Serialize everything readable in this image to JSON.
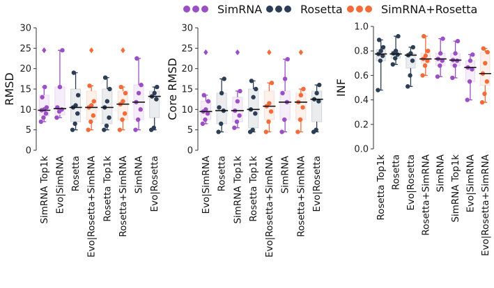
{
  "legend": [
    {
      "name": "SimRNA",
      "color": "#9b4fc4"
    },
    {
      "name": "Rosetta",
      "color": "#2c3e55"
    },
    {
      "name": "SimRNA+Rosetta",
      "color": "#f26b38"
    }
  ],
  "chart_data": [
    {
      "type": "box",
      "ylabel": "RMSD",
      "ylim": [
        0,
        30
      ],
      "yticks": [
        0,
        5,
        10,
        15,
        20,
        25,
        30
      ],
      "legend_position": "top",
      "boxes": [
        {
          "label": "SimRNA Top1k",
          "group": "SimRNA",
          "q1": 8.5,
          "median": 9.8,
          "q3": 13.5,
          "wlo": 7,
          "whi": 15.5,
          "outliers": [
            24.5
          ],
          "points": [
            7,
            8,
            9,
            9.8,
            10,
            10.5,
            13,
            15.5
          ]
        },
        {
          "label": "Evo|SimRNA",
          "group": "SimRNA",
          "q1": 8.7,
          "median": 10.2,
          "q3": 15.5,
          "wlo": 8,
          "whi": 24.5,
          "outliers": [],
          "points": [
            8,
            9.5,
            10,
            10.5,
            15.5,
            24.5
          ]
        },
        {
          "label": "Rosetta",
          "group": "Rosetta",
          "q1": 7,
          "median": 10.5,
          "q3": 15,
          "wlo": 5,
          "whi": 19,
          "outliers": [],
          "points": [
            5,
            6.5,
            9,
            10.5,
            11,
            13.5,
            19
          ]
        },
        {
          "label": "Evo|Rosetta+SimRNA",
          "group": "SimRNA+Rosetta",
          "q1": 7.5,
          "median": 10.5,
          "q3": 14.5,
          "wlo": 5,
          "whi": 15.8,
          "outliers": [
            24.5
          ],
          "points": [
            5,
            7,
            8.5,
            10.5,
            11,
            12,
            15.8
          ]
        },
        {
          "label": "Rosetta Top1k",
          "group": "Rosetta",
          "q1": 6.5,
          "median": 10.5,
          "q3": 15,
          "wlo": 5,
          "whi": 17.8,
          "outliers": [],
          "points": [
            5,
            6,
            8,
            10.5,
            12,
            15,
            17.8
          ]
        },
        {
          "label": "Rosetta+SimRNA",
          "group": "SimRNA+Rosetta",
          "q1": 7.5,
          "median": 11.3,
          "q3": 14.5,
          "wlo": 5,
          "whi": 15.5,
          "outliers": [
            24.5
          ],
          "points": [
            5,
            7.5,
            9,
            11.3,
            12,
            14,
            15.5
          ]
        },
        {
          "label": "SimRNA",
          "group": "SimRNA",
          "q1": 7.5,
          "median": 11.8,
          "q3": 16,
          "wlo": 5,
          "whi": 22.5,
          "outliers": [],
          "points": [
            5,
            7.5,
            10,
            11.8,
            14,
            16,
            22.5
          ]
        },
        {
          "label": "Evo|Rosetta",
          "group": "Rosetta",
          "q1": 8,
          "median": 13.2,
          "q3": 14.5,
          "wlo": 5,
          "whi": 15.5,
          "outliers": [],
          "points": [
            5,
            5.5,
            12.5,
            13.2,
            14,
            15.5
          ]
        }
      ]
    },
    {
      "type": "box",
      "ylabel": "Core RMSD",
      "ylim": [
        0,
        30
      ],
      "yticks": [
        0,
        5,
        10,
        15,
        20,
        25,
        30
      ],
      "boxes": [
        {
          "label": "Evo|SimRNA",
          "group": "SimRNA",
          "q1": 7.5,
          "median": 9.5,
          "q3": 12,
          "wlo": 6.5,
          "whi": 13.5,
          "outliers": [
            24
          ],
          "points": [
            6.5,
            7.5,
            9,
            9.5,
            10,
            12,
            13.5
          ]
        },
        {
          "label": "Rosetta",
          "group": "Rosetta",
          "q1": 6.5,
          "median": 9.7,
          "q3": 14,
          "wlo": 4.5,
          "whi": 17.5,
          "outliers": [],
          "points": [
            4.5,
            6.5,
            9.7,
            10.5,
            14,
            17.5
          ]
        },
        {
          "label": "SimRNA Top1k",
          "group": "SimRNA",
          "q1": 7,
          "median": 9.7,
          "q3": 13,
          "wlo": 5.5,
          "whi": 14.5,
          "outliers": [
            24
          ],
          "points": [
            5.5,
            7,
            8.5,
            9.7,
            12,
            14.5
          ]
        },
        {
          "label": "Rosetta Top1k",
          "group": "Rosetta",
          "q1": 5.5,
          "median": 10,
          "q3": 15,
          "wlo": 4.5,
          "whi": 17,
          "outliers": [],
          "points": [
            4.5,
            5,
            9,
            10,
            13,
            15,
            17
          ]
        },
        {
          "label": "Evo|Rosetta+SimRNA",
          "group": "SimRNA+Rosetta",
          "q1": 7.5,
          "median": 10.8,
          "q3": 14.5,
          "wlo": 4.5,
          "whi": 16.5,
          "outliers": [
            24
          ],
          "points": [
            4.5,
            7,
            9.5,
            10.8,
            11.5,
            16.5
          ]
        },
        {
          "label": "SimRNA",
          "group": "SimRNA",
          "q1": 7.5,
          "median": 11.8,
          "q3": 14.5,
          "wlo": 4.5,
          "whi": 22.3,
          "outliers": [],
          "points": [
            4.5,
            7.5,
            11.8,
            14,
            17.5,
            22.3
          ]
        },
        {
          "label": "Rosetta+SimRNA",
          "group": "SimRNA+Rosetta",
          "q1": 7.5,
          "median": 11.8,
          "q3": 14,
          "wlo": 4.5,
          "whi": 15,
          "outliers": [
            24
          ],
          "points": [
            4.5,
            7.5,
            10.5,
            11.8,
            13.5,
            15
          ]
        },
        {
          "label": "Evo|Rosetta",
          "group": "Rosetta",
          "q1": 7,
          "median": 12.5,
          "q3": 14.5,
          "wlo": 4.5,
          "whi": 16,
          "outliers": [],
          "points": [
            4.5,
            5,
            12,
            12.5,
            14,
            16
          ]
        }
      ]
    },
    {
      "type": "box",
      "ylabel": "INF",
      "ylim": [
        0.0,
        1.0
      ],
      "yticks": [
        0.0,
        0.2,
        0.4,
        0.6,
        0.8,
        1.0
      ],
      "boxes": [
        {
          "label": "Rosetta Top1k",
          "group": "Rosetta",
          "q1": 0.72,
          "median": 0.775,
          "q3": 0.81,
          "wlo": 0.48,
          "whi": 0.89,
          "outliers": [],
          "points": [
            0.48,
            0.72,
            0.76,
            0.775,
            0.8,
            0.83,
            0.89
          ]
        },
        {
          "label": "Rosetta",
          "group": "Rosetta",
          "q1": 0.74,
          "median": 0.775,
          "q3": 0.8,
          "wlo": 0.69,
          "whi": 0.92,
          "outliers": [],
          "points": [
            0.69,
            0.74,
            0.77,
            0.78,
            0.8,
            0.92
          ]
        },
        {
          "label": "Evo|Rosetta",
          "group": "Rosetta",
          "q1": 0.66,
          "median": 0.765,
          "q3": 0.78,
          "wlo": 0.51,
          "whi": 0.83,
          "outliers": [],
          "points": [
            0.51,
            0.6,
            0.72,
            0.765,
            0.78,
            0.83
          ]
        },
        {
          "label": "Rosetta+SimRNA",
          "group": "SimRNA+Rosetta",
          "q1": 0.7,
          "median": 0.735,
          "q3": 0.78,
          "wlo": 0.6,
          "whi": 0.92,
          "outliers": [],
          "points": [
            0.6,
            0.68,
            0.72,
            0.735,
            0.76,
            0.8,
            0.92
          ]
        },
        {
          "label": "SimRNA",
          "group": "SimRNA",
          "q1": 0.68,
          "median": 0.735,
          "q3": 0.78,
          "wlo": 0.59,
          "whi": 0.9,
          "outliers": [],
          "points": [
            0.59,
            0.68,
            0.72,
            0.735,
            0.78,
            0.9
          ]
        },
        {
          "label": "SimRNA Top1k",
          "group": "SimRNA",
          "q1": 0.68,
          "median": 0.725,
          "q3": 0.78,
          "wlo": 0.58,
          "whi": 0.88,
          "outliers": [],
          "points": [
            0.58,
            0.68,
            0.72,
            0.725,
            0.78,
            0.88
          ]
        },
        {
          "label": "Evo|SimRNA",
          "group": "SimRNA",
          "q1": 0.55,
          "median": 0.665,
          "q3": 0.72,
          "wlo": 0.4,
          "whi": 0.77,
          "outliers": [],
          "points": [
            0.4,
            0.55,
            0.65,
            0.665,
            0.72,
            0.77
          ]
        },
        {
          "label": "Evo|Rosetta+SimRNA",
          "group": "SimRNA+Rosetta",
          "q1": 0.52,
          "median": 0.615,
          "q3": 0.79,
          "wlo": 0.38,
          "whi": 0.82,
          "outliers": [],
          "points": [
            0.38,
            0.45,
            0.55,
            0.615,
            0.7,
            0.79,
            0.82
          ]
        }
      ]
    }
  ]
}
